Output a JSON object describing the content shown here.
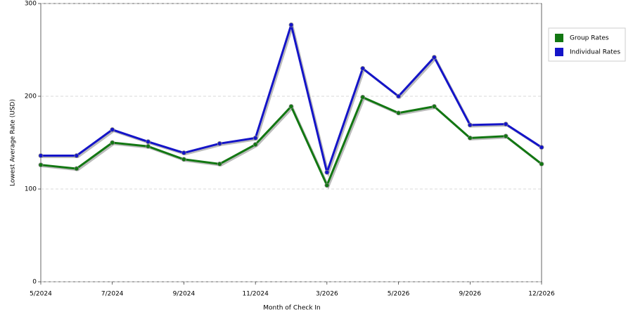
{
  "chart_data": {
    "type": "line",
    "x_label": "Month of Check In",
    "y_label": "Lowest Average Rate (USD)",
    "categories": [
      "5/2024",
      null,
      "7/2024",
      null,
      "9/2024",
      null,
      "11/2024",
      null,
      "3/2026",
      null,
      "5/2026",
      null,
      "9/2026",
      null,
      "12/2026"
    ],
    "series": [
      {
        "name": "Group Rates",
        "color": "#127712",
        "values": [
          126,
          122,
          150,
          146,
          132,
          127,
          148,
          189,
          104,
          199,
          182,
          189,
          155,
          157,
          127
        ]
      },
      {
        "name": "Individual Rates",
        "color": "#1414c8",
        "values": [
          136,
          136,
          164,
          151,
          139,
          149,
          155,
          277,
          118,
          230,
          200,
          242,
          169,
          170,
          145
        ]
      }
    ],
    "ylim": [
      0,
      300
    ],
    "yticks": [
      0,
      100,
      200,
      300
    ],
    "grid": true,
    "legend": "right"
  }
}
